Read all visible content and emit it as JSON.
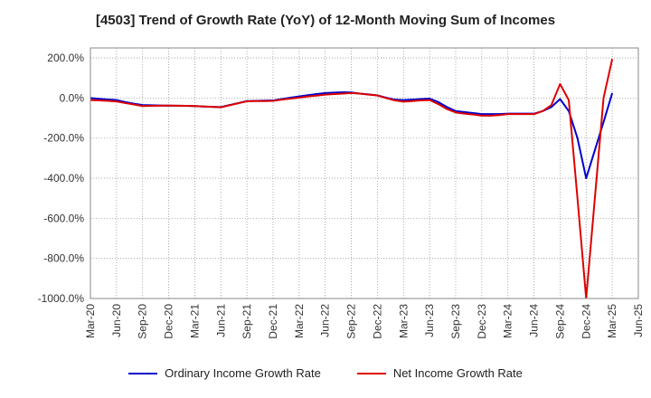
{
  "chart_data": {
    "type": "line",
    "title": "[4503]  Trend of Growth Rate (YoY) of 12-Month Moving Sum of Incomes",
    "xlabel": "",
    "ylabel": "",
    "ylim": [
      -1000,
      250
    ],
    "yticks": [
      200,
      0,
      -200,
      -400,
      -600,
      -800,
      -1000
    ],
    "ytick_labels": [
      "200.0%",
      "0.0%",
      "-200.0%",
      "-400.0%",
      "-600.0%",
      "-800.0%",
      "-1000.0%"
    ],
    "x_tick_labels": [
      "Mar-20",
      "Jun-20",
      "Sep-20",
      "Dec-20",
      "Mar-21",
      "Jun-21",
      "Sep-21",
      "Dec-21",
      "Mar-22",
      "Jun-22",
      "Sep-22",
      "Dec-22",
      "Mar-23",
      "Jun-23",
      "Sep-23",
      "Dec-23",
      "Mar-24",
      "Jun-24",
      "Sep-24",
      "Dec-24",
      "Mar-25",
      "Jun-25"
    ],
    "grid": true,
    "legend_position": "bottom",
    "categories": [
      "Mar-20",
      "Apr-20",
      "May-20",
      "Jun-20",
      "Jul-20",
      "Aug-20",
      "Sep-20",
      "Oct-20",
      "Nov-20",
      "Dec-20",
      "Jan-21",
      "Feb-21",
      "Mar-21",
      "Apr-21",
      "May-21",
      "Jun-21",
      "Jul-21",
      "Aug-21",
      "Sep-21",
      "Oct-21",
      "Nov-21",
      "Dec-21",
      "Jan-22",
      "Feb-22",
      "Mar-22",
      "Apr-22",
      "May-22",
      "Jun-22",
      "Jul-22",
      "Aug-22",
      "Sep-22",
      "Oct-22",
      "Nov-22",
      "Dec-22",
      "Jan-23",
      "Feb-23",
      "Mar-23",
      "Apr-23",
      "May-23",
      "Jun-23",
      "Jul-23",
      "Aug-23",
      "Sep-23",
      "Oct-23",
      "Nov-23",
      "Dec-23",
      "Jan-24",
      "Feb-24",
      "Mar-24",
      "Apr-24",
      "May-24",
      "Jun-24",
      "Jul-24",
      "Aug-24",
      "Sep-24",
      "Oct-24",
      "Nov-24",
      "Dec-24",
      "Jan-25",
      "Feb-25",
      "Mar-25"
    ],
    "series": [
      {
        "name": "Ordinary Income Growth Rate",
        "color": "#0000cc",
        "values": [
          0,
          -4,
          -7,
          -10,
          -20,
          -28,
          -35,
          -36,
          -37,
          -38,
          -38,
          -39,
          -40,
          -42,
          -44,
          -45,
          -35,
          -25,
          -15,
          -14,
          -13,
          -12,
          -5,
          2,
          8,
          14,
          20,
          25,
          27,
          29,
          28,
          22,
          18,
          13,
          2,
          -8,
          -10,
          -8,
          -5,
          -3,
          -20,
          -45,
          -65,
          -70,
          -75,
          -80,
          -80,
          -80,
          -78,
          -78,
          -78,
          -78,
          -65,
          -45,
          -5,
          -65,
          -200,
          -400,
          -260,
          -120,
          25
        ]
      },
      {
        "name": "Net Income Growth Rate",
        "color": "#dd0000",
        "values": [
          -10,
          -12,
          -14,
          -17,
          -25,
          -32,
          -40,
          -39,
          -38,
          -37,
          -38,
          -39,
          -40,
          -42,
          -44,
          -46,
          -36,
          -26,
          -16,
          -15,
          -15,
          -14,
          -8,
          -3,
          2,
          8,
          12,
          17,
          20,
          22,
          25,
          22,
          17,
          13,
          0,
          -12,
          -18,
          -15,
          -12,
          -10,
          -30,
          -55,
          -72,
          -78,
          -82,
          -88,
          -88,
          -85,
          -80,
          -80,
          -80,
          -80,
          -65,
          -35,
          70,
          -10,
          -500,
          -1000,
          -500,
          0,
          195
        ]
      }
    ]
  }
}
